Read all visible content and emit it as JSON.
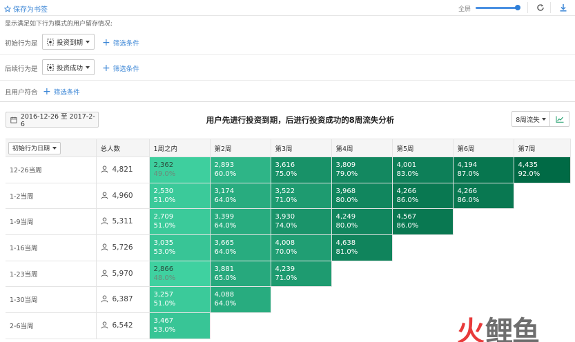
{
  "topbar": {
    "bookmark_label": "保存为书签",
    "zoom_label": "全屏",
    "zoom_level": 0.95,
    "star_icon": "star-icon",
    "refresh_icon": "refresh-icon",
    "download_icon": "download-icon"
  },
  "description": "显示满足如下行为模式的用户留存情况:",
  "initial_behavior": {
    "label": "初始行为是",
    "event": "投资到期",
    "filter_label": "筛选条件"
  },
  "followup_behavior": {
    "label": "后续行为是",
    "event": "投资成功",
    "filter_label": "筛选条件"
  },
  "user_condition": {
    "label": "且用户符合",
    "filter_label": "筛选条件"
  },
  "toolbar": {
    "date_range": "2016-12-26 至 2017-2-6",
    "title": "用户先进行投资到期，后进行投资成功的8周流失分析",
    "period_select": "8周流失"
  },
  "table": {
    "cohort_select": "初始行为日期",
    "total_header": "总人数",
    "week_headers": [
      "1周之内",
      "第2周",
      "第3周",
      "第4周",
      "第5周",
      "第6周",
      "第7周"
    ],
    "rows": [
      {
        "cohort": "12-26当周",
        "total": "4,821",
        "cells": [
          [
            "2,362",
            "49.0%"
          ],
          [
            "2,893",
            "60.0%"
          ],
          [
            "3,616",
            "75.0%"
          ],
          [
            "3,809",
            "79.0%"
          ],
          [
            "4,001",
            "83.0%"
          ],
          [
            "4,194",
            "87.0%"
          ],
          [
            "4,435",
            "92.0%"
          ]
        ]
      },
      {
        "cohort": "1-2当周",
        "total": "4,960",
        "cells": [
          [
            "2,530",
            "51.0%"
          ],
          [
            "3,174",
            "64.0%"
          ],
          [
            "3,522",
            "71.0%"
          ],
          [
            "3,968",
            "80.0%"
          ],
          [
            "4,266",
            "86.0%"
          ],
          [
            "4,266",
            "86.0%"
          ]
        ]
      },
      {
        "cohort": "1-9当周",
        "total": "5,311",
        "cells": [
          [
            "2,709",
            "51.0%"
          ],
          [
            "3,399",
            "64.0%"
          ],
          [
            "3,930",
            "74.0%"
          ],
          [
            "4,249",
            "80.0%"
          ],
          [
            "4,567",
            "86.0%"
          ]
        ]
      },
      {
        "cohort": "1-16当周",
        "total": "5,726",
        "cells": [
          [
            "3,035",
            "53.0%"
          ],
          [
            "3,665",
            "64.0%"
          ],
          [
            "4,008",
            "70.0%"
          ],
          [
            "4,638",
            "81.0%"
          ]
        ]
      },
      {
        "cohort": "1-23当周",
        "total": "5,970",
        "cells": [
          [
            "2,866",
            "48.0%"
          ],
          [
            "3,881",
            "65.0%"
          ],
          [
            "4,239",
            "71.0%"
          ]
        ]
      },
      {
        "cohort": "1-30当周",
        "total": "6,387",
        "cells": [
          [
            "3,257",
            "51.0%"
          ],
          [
            "4,088",
            "64.0%"
          ]
        ]
      },
      {
        "cohort": "2-6当周",
        "total": "6,542",
        "cells": [
          [
            "3,467",
            "53.0%"
          ]
        ]
      }
    ]
  },
  "colors": {
    "accent": "#3b86d6",
    "heat_low": "#3fd1a0",
    "heat_high": "#006a45"
  },
  "watermark": {
    "left": "火",
    "right": "鲤鱼"
  }
}
